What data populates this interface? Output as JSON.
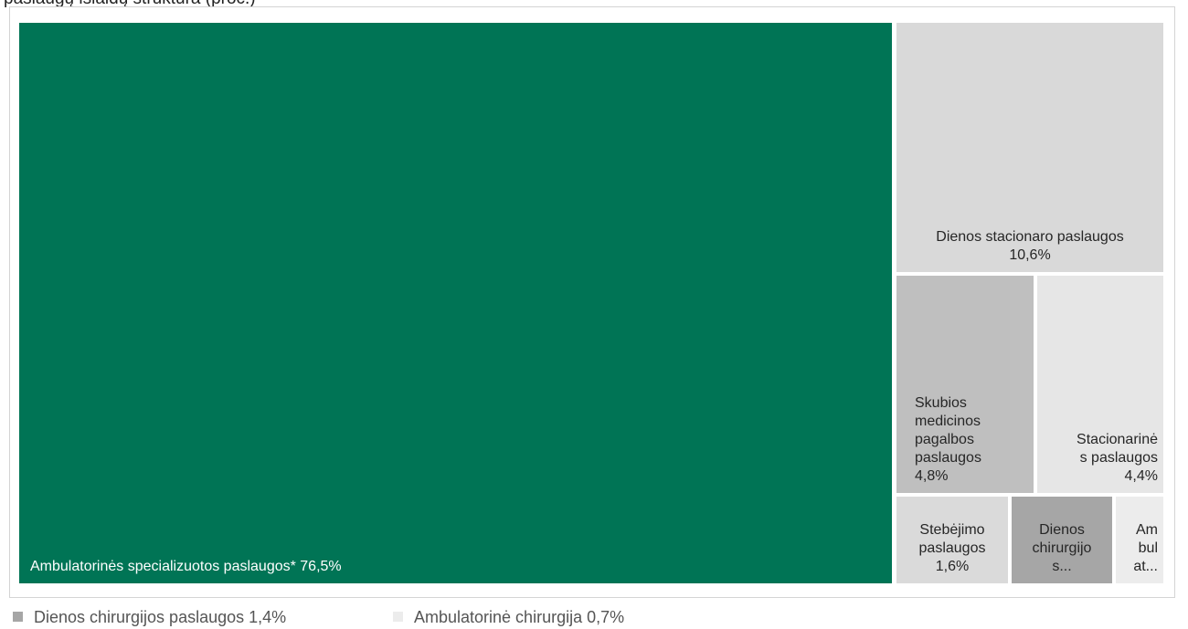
{
  "header": {
    "partial_text": "paslaugų išlaidų struktūra (proc.)"
  },
  "chart_data": {
    "type": "treemap",
    "items": [
      {
        "label": "Ambulatorinės specializuotos paslaugos*",
        "value": 76.5,
        "display_value": "76,5%",
        "label_lines": [
          "Ambulatorinės specializuotos paslaugos* 76,5%"
        ],
        "color": "#007455"
      },
      {
        "label": "Dienos stacionaro paslaugos",
        "value": 10.6,
        "display_value": "10,6%",
        "label_lines": [
          "Dienos stacionaro paslaugos",
          "10,6%"
        ],
        "color": "#d9d9d9"
      },
      {
        "label": "Skubios medicinos pagalbos paslaugos",
        "value": 4.8,
        "display_value": "4,8%",
        "label_lines": [
          "Skubios",
          "medicinos",
          "pagalbos",
          "paslaugos",
          "4,8%"
        ],
        "color": "#bfbfbf"
      },
      {
        "label": "Stacionarinės paslaugos",
        "value": 4.4,
        "display_value": "4,4%",
        "label_lines": [
          "Stacionarinė",
          "s paslaugos",
          "4,4%"
        ],
        "color": "#e6e6e6"
      },
      {
        "label": "Stebėjimo paslaugos",
        "value": 1.6,
        "display_value": "1,6%",
        "label_lines": [
          "Stebėjimo",
          "paslaugos",
          "1,6%"
        ],
        "color": "#dadada"
      },
      {
        "label": "Dienos chirurgijos paslaugos",
        "value": 1.4,
        "display_value": "1,4%",
        "label_lines": [
          "Dienos",
          "chirurgijo",
          "s..."
        ],
        "color": "#a6a6a6"
      },
      {
        "label": "Ambulatorinė chirurgija",
        "value": 0.7,
        "display_value": "0,7%",
        "label_lines": [
          "Am",
          "bul",
          "at..."
        ],
        "color": "#ececec"
      }
    ],
    "legend": [
      {
        "text": "Dienos chirurgijos paslaugos 1,4%",
        "color": "#a6a6a6"
      },
      {
        "text": "Ambulatorinė chirurgija 0,7%",
        "color": "#ececec"
      }
    ]
  }
}
